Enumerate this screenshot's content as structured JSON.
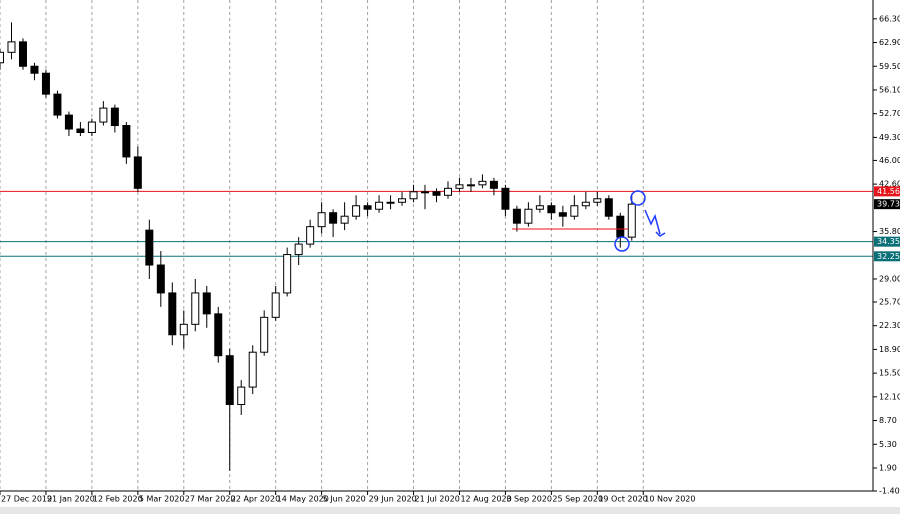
{
  "chart_data": {
    "type": "candlestick",
    "x": [
      0,
      4,
      8,
      12,
      16,
      20,
      24,
      28,
      32,
      36,
      40,
      44,
      48,
      52,
      56,
      60,
      64,
      68,
      72,
      76,
      80,
      84,
      88,
      92,
      96,
      100,
      104,
      108,
      112,
      116,
      120,
      124,
      128,
      132,
      136,
      140,
      144,
      148,
      152,
      156,
      160,
      164,
      168,
      172,
      176,
      180,
      184,
      188,
      192,
      196,
      200,
      204,
      208,
      212,
      216,
      220
    ],
    "open": [
      60,
      61.5,
      63,
      59.5,
      58.5,
      55.5,
      52.5,
      50.5,
      50,
      51.5,
      53.5,
      51,
      46.5,
      36,
      31,
      27,
      21,
      22.5,
      27,
      24,
      18,
      11,
      13.5,
      18.5,
      23.5,
      27,
      32.5,
      34,
      36.5,
      38.5,
      37,
      38,
      39.5,
      39,
      40,
      40,
      40.5,
      41.5,
      41.5,
      41,
      42,
      42.5,
      42.5,
      43,
      42,
      39,
      37,
      39,
      39.5,
      38.5,
      38,
      39.5,
      40,
      40.5,
      38,
      35
    ],
    "high": [
      62,
      65.8,
      63.5,
      60,
      59,
      56,
      53,
      51.5,
      52,
      54.5,
      54,
      51.5,
      48,
      37.5,
      33,
      28.5,
      24.5,
      29,
      28,
      25,
      19,
      14.5,
      19.5,
      24.5,
      28,
      33.5,
      35,
      37.5,
      40,
      39,
      40,
      41,
      40,
      41,
      41,
      41.5,
      42.5,
      42.5,
      42,
      43,
      43.5,
      43.5,
      44,
      43.5,
      42.5,
      39.5,
      40,
      41,
      40,
      39.5,
      41,
      41.5,
      41.5,
      41,
      38.5,
      41
    ],
    "low": [
      59,
      60.5,
      59,
      57.5,
      55,
      52,
      49.5,
      49.5,
      49.5,
      51,
      50,
      45.5,
      41.5,
      29,
      25,
      19.5,
      19,
      21.5,
      22,
      17,
      1.5,
      9.5,
      12.5,
      18,
      23,
      26.5,
      31,
      33.5,
      35.5,
      35,
      36,
      37.5,
      38,
      38.5,
      39,
      39.5,
      40,
      39,
      40,
      40.5,
      41.5,
      41.5,
      42,
      41,
      38,
      35.8,
      36.5,
      38.5,
      37.5,
      36.5,
      37.5,
      39,
      39.5,
      37.5,
      33.5,
      34.5
    ],
    "close": [
      61.5,
      63,
      59.5,
      58.5,
      55.5,
      52.5,
      50.5,
      50,
      51.5,
      53.5,
      51,
      46.5,
      42,
      31,
      27,
      21,
      22.5,
      27,
      24,
      18,
      11,
      13.5,
      18.5,
      23.5,
      27,
      32.5,
      34,
      36.5,
      38.5,
      37,
      38,
      39.5,
      39,
      40,
      40,
      40.5,
      41.5,
      41.5,
      41,
      42,
      42.5,
      42.5,
      43,
      42,
      39,
      37,
      39,
      39.5,
      38.5,
      38,
      39.5,
      40,
      40.5,
      38,
      35,
      39.73
    ],
    "xlim": [
      0,
      304
    ],
    "xticks": [
      {
        "value": 0,
        "label": "27 Dec 2019"
      },
      {
        "value": 16,
        "label": "21 Jan 2020"
      },
      {
        "value": 32,
        "label": "12 Feb 2020"
      },
      {
        "value": 48,
        "label": "5 Mar 2020"
      },
      {
        "value": 64,
        "label": "27 Mar 2020"
      },
      {
        "value": 80,
        "label": "22 Apr 2020"
      },
      {
        "value": 96,
        "label": "14 May 2020"
      },
      {
        "value": 112,
        "label": "5 Jun 2020"
      },
      {
        "value": 128,
        "label": "29 Jun 2020"
      },
      {
        "value": 144,
        "label": "21 Jul 2020"
      },
      {
        "value": 160,
        "label": "12 Aug 2020"
      },
      {
        "value": 176,
        "label": "3 Sep 2020"
      },
      {
        "value": 192,
        "label": "25 Sep 2020"
      },
      {
        "value": 208,
        "label": "19 Oct 2020"
      },
      {
        "value": 224,
        "label": "10 Nov 2020"
      }
    ],
    "ylim": [
      -1.4,
      69
    ],
    "yticks": [
      {
        "value": 66.3,
        "label": "66.30"
      },
      {
        "value": 62.9,
        "label": "62.90"
      },
      {
        "value": 59.5,
        "label": "59.50"
      },
      {
        "value": 56.1,
        "label": "56.10"
      },
      {
        "value": 52.7,
        "label": "52.70"
      },
      {
        "value": 49.3,
        "label": "49.30"
      },
      {
        "value": 46,
        "label": "46.00"
      },
      {
        "value": 42.6,
        "label": "42.60"
      },
      {
        "value": 35.8,
        "label": "35.80"
      },
      {
        "value": 29,
        "label": "29.00"
      },
      {
        "value": 25.7,
        "label": "25.70"
      },
      {
        "value": 22.3,
        "label": "22.30"
      },
      {
        "value": 18.9,
        "label": "18.90"
      },
      {
        "value": 15.5,
        "label": "15.50"
      },
      {
        "value": 12.1,
        "label": "12.10"
      },
      {
        "value": 8.7,
        "label": "8.70"
      },
      {
        "value": 5.3,
        "label": "5.30"
      },
      {
        "value": 1.9,
        "label": "1.90"
      },
      {
        "value": -1.4,
        "label": "-1.40"
      }
    ],
    "hlines": [
      {
        "value": 41.56,
        "color": "#e8141b"
      },
      {
        "value": 34.35,
        "color": "#0a7078"
      },
      {
        "value": 32.25,
        "color": "#0a7078"
      }
    ],
    "last_price": 39.73,
    "grid": true
  }
}
